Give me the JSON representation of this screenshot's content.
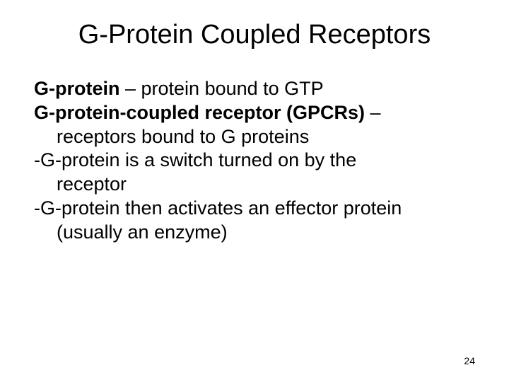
{
  "slide": {
    "title": "G-Protein Coupled Receptors",
    "title_color": "#000000",
    "title_fontsize": 38,
    "background_color": "#ffffff",
    "body_fontsize": 27,
    "body_color": "#000000",
    "line1_bold": "G-protein",
    "line1_rest": " – protein bound to GTP",
    "line2_bold": "G-protein-coupled receptor (GPCRs)",
    "line2_rest": " –",
    "line2_cont": "receptors bound to G proteins",
    "line3": "-G-protein is a switch turned on by the",
    "line3_cont": "receptor",
    "line4": "-G-protein then activates an effector protein",
    "line4_cont": "(usually an enzyme)",
    "page_number": "24",
    "page_number_fontsize": 14
  }
}
